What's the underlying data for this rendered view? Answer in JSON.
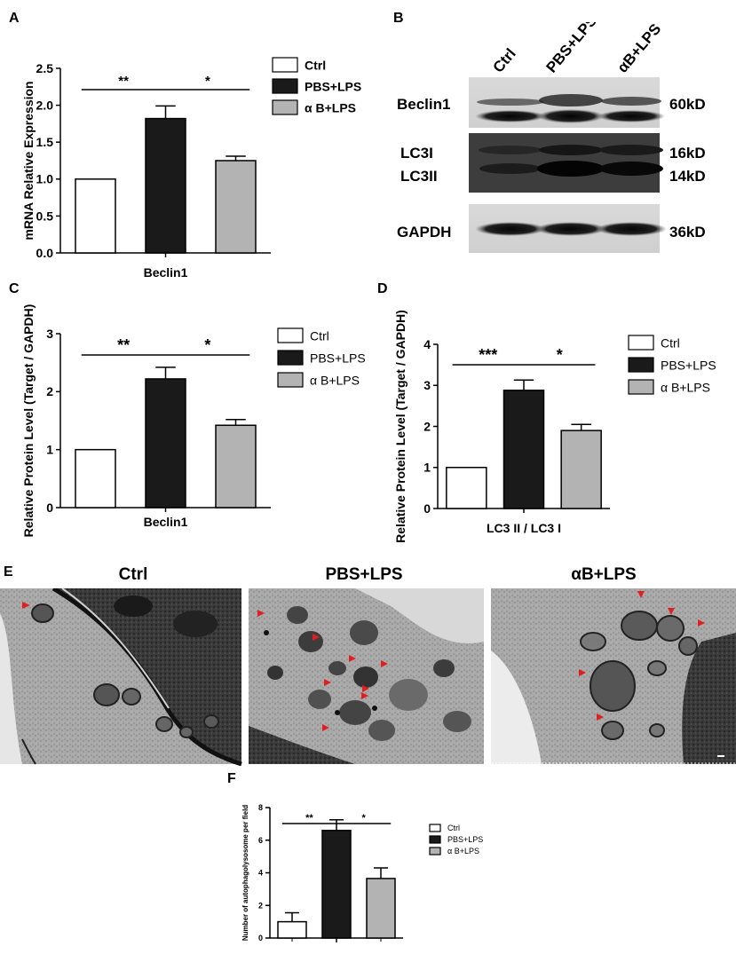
{
  "panels": {
    "A": "A",
    "B": "B",
    "C": "C",
    "D": "D",
    "E": "E",
    "F": "F"
  },
  "colors": {
    "ctrl": "#ffffff",
    "pbs": "#1a1a1a",
    "ab": "#b3b3b3",
    "arrow": "#e02020",
    "em_bg": "#a8a8a8"
  },
  "chart_data": [
    {
      "id": "A",
      "type": "bar",
      "categories": [
        "Ctrl",
        "PBS+LPS",
        "α B+LPS"
      ],
      "values": [
        1.0,
        1.82,
        1.25
      ],
      "errors": [
        0,
        0.17,
        0.06
      ],
      "ylabel": "mRNA Relative Expression",
      "xlabel": "Beclin1",
      "ylim": [
        0,
        2.5
      ],
      "yticks": [
        "0.0",
        "0.5",
        "1.0",
        "1.5",
        "2.0",
        "2.5"
      ],
      "legend": [
        "Ctrl",
        "PBS+LPS",
        "α B+LPS"
      ],
      "legend_position": "right",
      "significance": [
        {
          "from": 0,
          "to": 1,
          "label": "**"
        },
        {
          "from": 1,
          "to": 2,
          "label": "*"
        }
      ]
    },
    {
      "id": "C",
      "type": "bar",
      "categories": [
        "Ctrl",
        "PBS+LPS",
        "α B+LPS"
      ],
      "values": [
        1.0,
        2.22,
        1.42
      ],
      "errors": [
        0,
        0.2,
        0.1
      ],
      "ylabel": "Relative Protein Level (Target / GAPDH)",
      "xlabel": "Beclin1",
      "ylim": [
        0,
        3
      ],
      "yticks": [
        "0",
        "1",
        "2",
        "3"
      ],
      "legend": [
        "Ctrl",
        "PBS+LPS",
        "α B+LPS"
      ],
      "legend_position": "right",
      "significance": [
        {
          "from": 0,
          "to": 1,
          "label": "**"
        },
        {
          "from": 1,
          "to": 2,
          "label": "*"
        }
      ]
    },
    {
      "id": "D",
      "type": "bar",
      "categories": [
        "Ctrl",
        "PBS+LPS",
        "α B+LPS"
      ],
      "values": [
        1.0,
        2.88,
        1.9
      ],
      "errors": [
        0,
        0.25,
        0.15
      ],
      "ylabel": "Relative Protein Level (Target / GAPDH)",
      "xlabel": "LC3 II / LC3 I",
      "ylim": [
        0,
        4
      ],
      "yticks": [
        "0",
        "1",
        "2",
        "3",
        "4"
      ],
      "legend": [
        "Ctrl",
        "PBS+LPS",
        "α B+LPS"
      ],
      "legend_position": "right",
      "significance": [
        {
          "from": 0,
          "to": 1,
          "label": "***"
        },
        {
          "from": 1,
          "to": 2,
          "label": "*"
        }
      ]
    },
    {
      "id": "F",
      "type": "bar",
      "categories": [
        "Ctrl",
        "PBS+LPS",
        "α B+LPS"
      ],
      "values": [
        1.0,
        6.6,
        3.65
      ],
      "errors": [
        0.55,
        0.65,
        0.65
      ],
      "ylabel": "Number of autophagolysosome per field",
      "xlabel": "",
      "ylim": [
        0,
        8
      ],
      "yticks": [
        "0",
        "2",
        "4",
        "6",
        "8"
      ],
      "legend": [
        "Ctrl",
        "PBS+LPS",
        "α B+LPS"
      ],
      "legend_position": "right",
      "significance": [
        {
          "from": 0,
          "to": 1,
          "label": "**"
        },
        {
          "from": 1,
          "to": 2,
          "label": "*"
        }
      ]
    }
  ],
  "blot": {
    "lanes": [
      "Ctrl",
      "PBS+LPS",
      "αB+LPS"
    ],
    "left_labels": [
      "Beclin1",
      "LC3I",
      "LC3II",
      "GAPDH"
    ],
    "right_labels": [
      "60kD",
      "16kD",
      "14kD",
      "36kD"
    ]
  },
  "em": {
    "titles": [
      "Ctrl",
      "PBS+LPS",
      "αB+LPS"
    ]
  }
}
